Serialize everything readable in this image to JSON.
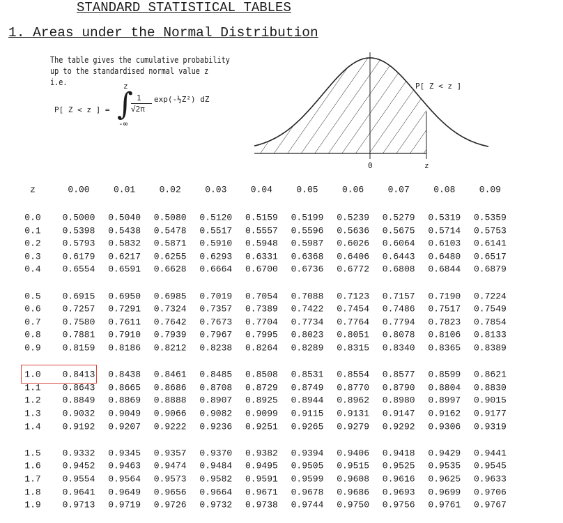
{
  "header": {
    "title": "STANDARD STATISTICAL TABLES"
  },
  "section": {
    "title": "1. Areas under the Normal Distribution",
    "description": [
      "The table gives the cumulative probability",
      "up to the standardised normal value z",
      "i.e."
    ],
    "formula": {
      "lhs": "P[ Z < z ] =",
      "upper_limit": "z",
      "lower_limit": "-∞",
      "numerator": "1",
      "denominator": "√2π",
      "integrand": "exp(-½Z²) dZ"
    },
    "diagram": {
      "label": "P[ Z < z ]",
      "origin": "0",
      "z": "z"
    }
  },
  "table": {
    "columns": [
      "z",
      "0.00",
      "0.01",
      "0.02",
      "0.03",
      "0.04",
      "0.05",
      "0.06",
      "0.07",
      "0.08",
      "0.09"
    ],
    "rows": [
      [
        "0.0",
        "0.5000",
        "0.5040",
        "0.5080",
        "0.5120",
        "0.5159",
        "0.5199",
        "0.5239",
        "0.5279",
        "0.5319",
        "0.5359"
      ],
      [
        "0.1",
        "0.5398",
        "0.5438",
        "0.5478",
        "0.5517",
        "0.5557",
        "0.5596",
        "0.5636",
        "0.5675",
        "0.5714",
        "0.5753"
      ],
      [
        "0.2",
        "0.5793",
        "0.5832",
        "0.5871",
        "0.5910",
        "0.5948",
        "0.5987",
        "0.6026",
        "0.6064",
        "0.6103",
        "0.6141"
      ],
      [
        "0.3",
        "0.6179",
        "0.6217",
        "0.6255",
        "0.6293",
        "0.6331",
        "0.6368",
        "0.6406",
        "0.6443",
        "0.6480",
        "0.6517"
      ],
      [
        "0.4",
        "0.6554",
        "0.6591",
        "0.6628",
        "0.6664",
        "0.6700",
        "0.6736",
        "0.6772",
        "0.6808",
        "0.6844",
        "0.6879"
      ],
      [
        "0.5",
        "0.6915",
        "0.6950",
        "0.6985",
        "0.7019",
        "0.7054",
        "0.7088",
        "0.7123",
        "0.7157",
        "0.7190",
        "0.7224"
      ],
      [
        "0.6",
        "0.7257",
        "0.7291",
        "0.7324",
        "0.7357",
        "0.7389",
        "0.7422",
        "0.7454",
        "0.7486",
        "0.7517",
        "0.7549"
      ],
      [
        "0.7",
        "0.7580",
        "0.7611",
        "0.7642",
        "0.7673",
        "0.7704",
        "0.7734",
        "0.7764",
        "0.7794",
        "0.7823",
        "0.7854"
      ],
      [
        "0.8",
        "0.7881",
        "0.7910",
        "0.7939",
        "0.7967",
        "0.7995",
        "0.8023",
        "0.8051",
        "0.8078",
        "0.8106",
        "0.8133"
      ],
      [
        "0.9",
        "0.8159",
        "0.8186",
        "0.8212",
        "0.8238",
        "0.8264",
        "0.8289",
        "0.8315",
        "0.8340",
        "0.8365",
        "0.8389"
      ],
      [
        "1.0",
        "0.8413",
        "0.8438",
        "0.8461",
        "0.8485",
        "0.8508",
        "0.8531",
        "0.8554",
        "0.8577",
        "0.8599",
        "0.8621"
      ],
      [
        "1.1",
        "0.8643",
        "0.8665",
        "0.8686",
        "0.8708",
        "0.8729",
        "0.8749",
        "0.8770",
        "0.8790",
        "0.8804",
        "0.8830"
      ],
      [
        "1.2",
        "0.8849",
        "0.8869",
        "0.8888",
        "0.8907",
        "0.8925",
        "0.8944",
        "0.8962",
        "0.8980",
        "0.8997",
        "0.9015"
      ],
      [
        "1.3",
        "0.9032",
        "0.9049",
        "0.9066",
        "0.9082",
        "0.9099",
        "0.9115",
        "0.9131",
        "0.9147",
        "0.9162",
        "0.9177"
      ],
      [
        "1.4",
        "0.9192",
        "0.9207",
        "0.9222",
        "0.9236",
        "0.9251",
        "0.9265",
        "0.9279",
        "0.9292",
        "0.9306",
        "0.9319"
      ],
      [
        "1.5",
        "0.9332",
        "0.9345",
        "0.9357",
        "0.9370",
        "0.9382",
        "0.9394",
        "0.9406",
        "0.9418",
        "0.9429",
        "0.9441"
      ],
      [
        "1.6",
        "0.9452",
        "0.9463",
        "0.9474",
        "0.9484",
        "0.9495",
        "0.9505",
        "0.9515",
        "0.9525",
        "0.9535",
        "0.9545"
      ],
      [
        "1.7",
        "0.9554",
        "0.9564",
        "0.9573",
        "0.9582",
        "0.9591",
        "0.9599",
        "0.9608",
        "0.9616",
        "0.9625",
        "0.9633"
      ],
      [
        "1.8",
        "0.9641",
        "0.9649",
        "0.9656",
        "0.9664",
        "0.9671",
        "0.9678",
        "0.9686",
        "0.9693",
        "0.9699",
        "0.9706"
      ],
      [
        "1.9",
        "0.9713",
        "0.9719",
        "0.9726",
        "0.9732",
        "0.9738",
        "0.9744",
        "0.9750",
        "0.9756",
        "0.9761",
        "0.9767"
      ]
    ]
  }
}
